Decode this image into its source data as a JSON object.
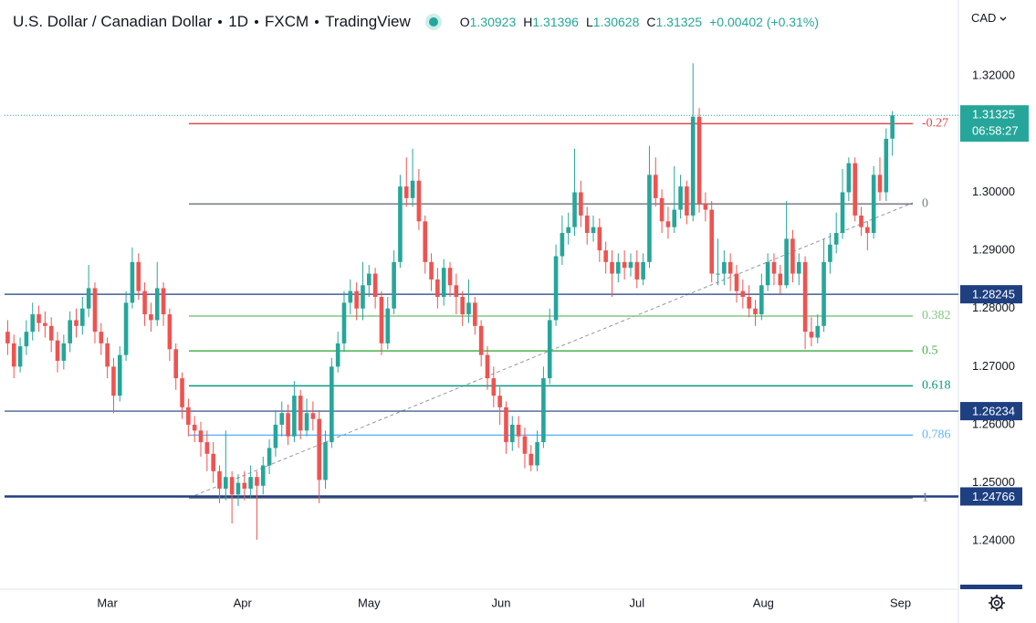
{
  "chart_data": {
    "type": "candlestick",
    "title": "U.S. Dollar / Canadian Dollar",
    "interval": "1D",
    "source": "FXCM",
    "platform": "TradingView",
    "currency": "CAD",
    "ohlc_prefixes": [
      "O",
      "H",
      "L",
      "C"
    ],
    "change": "+0.00402 (+0.31%)",
    "countdown": "06:58:27",
    "up_color": "#26a69a",
    "down_color": "#ef5350",
    "open": [
      1.276,
      1.274,
      1.27,
      1.2735,
      1.276,
      1.279,
      1.2775,
      1.277,
      1.2745,
      1.271,
      1.274,
      1.278,
      1.277,
      1.28,
      1.2835,
      1.276,
      1.274,
      1.27,
      1.265,
      1.272,
      1.281,
      1.288,
      1.283,
      1.279,
      1.278,
      1.2835,
      1.279,
      1.273,
      1.268,
      1.263,
      1.26,
      1.259,
      1.257,
      1.255,
      1.252,
      1.249,
      1.251,
      1.248,
      1.25,
      1.249,
      1.251,
      1.2495,
      1.253,
      1.256,
      1.26,
      1.262,
      1.258,
      1.265,
      1.259,
      1.262,
      1.261,
      1.2505,
      1.257,
      1.27,
      1.274,
      1.281,
      1.283,
      1.28,
      1.284,
      1.286,
      1.282,
      1.274,
      1.28,
      1.288,
      1.301,
      1.299,
      1.302,
      1.295,
      1.288,
      1.285,
      1.282,
      1.287,
      1.284,
      1.282,
      1.279,
      1.281,
      1.277,
      1.272,
      1.268,
      1.265,
      1.263,
      1.257,
      1.26,
      1.258,
      1.255,
      1.253,
      1.257,
      1.268,
      1.278,
      1.289,
      1.293,
      1.294,
      1.3,
      1.296,
      1.293,
      1.294,
      1.29,
      1.288,
      1.286,
      1.288,
      1.287,
      1.288,
      1.285,
      1.288,
      1.303,
      1.299,
      1.295,
      1.294,
      1.297,
      1.301,
      1.296,
      1.313,
      1.298,
      1.297,
      1.286,
      1.286,
      1.288,
      1.286,
      1.283,
      1.282,
      1.28,
      1.279,
      1.284,
      1.288,
      1.286,
      1.284,
      1.292,
      1.286,
      1.288,
      1.276,
      1.275,
      1.277,
      1.288,
      1.291,
      1.293,
      1.3,
      1.305,
      1.296,
      1.294,
      1.293,
      1.303,
      1.3,
      1.30923
    ],
    "high": [
      1.278,
      1.2755,
      1.275,
      1.278,
      1.281,
      1.2805,
      1.2795,
      1.2785,
      1.276,
      1.2755,
      1.2795,
      1.28,
      1.282,
      1.2875,
      1.2845,
      1.2775,
      1.275,
      1.2715,
      1.2735,
      1.283,
      1.2905,
      1.2895,
      1.2845,
      1.281,
      1.288,
      1.2845,
      1.28,
      1.274,
      1.269,
      1.2645,
      1.2615,
      1.2605,
      1.259,
      1.257,
      1.253,
      1.259,
      1.252,
      1.2515,
      1.252,
      1.253,
      1.252,
      1.2545,
      1.2575,
      1.2625,
      1.264,
      1.2635,
      1.2675,
      1.266,
      1.2645,
      1.264,
      1.2625,
      1.259,
      1.2715,
      1.276,
      1.283,
      1.285,
      1.2845,
      1.288,
      1.2875,
      1.287,
      1.283,
      1.282,
      1.29,
      1.303,
      1.306,
      1.3075,
      1.304,
      1.296,
      1.2895,
      1.287,
      1.2885,
      1.288,
      1.286,
      1.283,
      1.285,
      1.282,
      1.278,
      1.2735,
      1.27,
      1.2665,
      1.264,
      1.2615,
      1.2615,
      1.2595,
      1.2565,
      1.259,
      1.27,
      1.28,
      1.291,
      1.296,
      1.2965,
      1.3075,
      1.302,
      1.2975,
      1.296,
      1.2955,
      1.2915,
      1.29,
      1.2895,
      1.29,
      1.2895,
      1.29,
      1.2895,
      1.308,
      1.306,
      1.3005,
      1.2975,
      1.3045,
      1.303,
      1.302,
      1.3222,
      1.3145,
      1.3,
      1.2985,
      1.292,
      1.29,
      1.2895,
      1.2875,
      1.285,
      1.284,
      1.2815,
      1.286,
      1.2895,
      1.2895,
      1.2875,
      1.2985,
      1.2935,
      1.2895,
      1.289,
      1.2785,
      1.279,
      1.292,
      1.293,
      1.2965,
      1.304,
      1.306,
      1.306,
      1.2975,
      1.295,
      1.3045,
      1.306,
      1.311,
      1.31396
    ],
    "low": [
      1.272,
      1.268,
      1.269,
      1.272,
      1.2745,
      1.276,
      1.275,
      1.2725,
      1.269,
      1.2695,
      1.2725,
      1.275,
      1.2755,
      1.2785,
      1.274,
      1.272,
      1.268,
      1.262,
      1.264,
      1.271,
      1.28,
      1.2815,
      1.277,
      1.276,
      1.277,
      1.277,
      1.271,
      1.266,
      1.261,
      1.258,
      1.257,
      1.2545,
      1.252,
      1.25,
      1.2465,
      1.247,
      1.243,
      1.246,
      1.247,
      1.2475,
      1.2402,
      1.248,
      1.2515,
      1.2545,
      1.258,
      1.2565,
      1.257,
      1.2575,
      1.258,
      1.259,
      1.2465,
      1.249,
      1.256,
      1.269,
      1.2725,
      1.279,
      1.278,
      1.278,
      1.282,
      1.28,
      1.272,
      1.273,
      1.279,
      1.287,
      1.2975,
      1.2975,
      1.2935,
      1.286,
      1.283,
      1.28,
      1.2805,
      1.282,
      1.279,
      1.277,
      1.2775,
      1.2755,
      1.27,
      1.266,
      1.263,
      1.26,
      1.255,
      1.2555,
      1.256,
      1.2525,
      1.252,
      1.252,
      1.256,
      1.267,
      1.277,
      1.2875,
      1.291,
      1.2925,
      1.294,
      1.291,
      1.2915,
      1.288,
      1.286,
      1.282,
      1.2845,
      1.285,
      1.2855,
      1.2835,
      1.284,
      1.287,
      1.2975,
      1.293,
      1.292,
      1.293,
      1.2955,
      1.2945,
      1.295,
      1.2965,
      1.295,
      1.2845,
      1.284,
      1.284,
      1.283,
      1.281,
      1.28,
      1.2785,
      1.277,
      1.278,
      1.283,
      1.284,
      1.2825,
      1.2835,
      1.2845,
      1.284,
      1.273,
      1.2735,
      1.274,
      1.276,
      1.286,
      1.2895,
      1.292,
      1.2985,
      1.295,
      1.2925,
      1.29,
      1.292,
      1.2985,
      1.2985,
      1.30628
    ],
    "close": [
      1.274,
      1.27,
      1.2735,
      1.276,
      1.279,
      1.2775,
      1.277,
      1.2745,
      1.271,
      1.274,
      1.278,
      1.277,
      1.28,
      1.2835,
      1.276,
      1.274,
      1.27,
      1.265,
      1.272,
      1.281,
      1.288,
      1.283,
      1.279,
      1.278,
      1.2835,
      1.279,
      1.273,
      1.268,
      1.263,
      1.26,
      1.259,
      1.257,
      1.255,
      1.252,
      1.249,
      1.251,
      1.248,
      1.25,
      1.249,
      1.251,
      1.2495,
      1.253,
      1.256,
      1.26,
      1.262,
      1.258,
      1.265,
      1.259,
      1.262,
      1.261,
      1.2505,
      1.257,
      1.27,
      1.274,
      1.281,
      1.283,
      1.28,
      1.284,
      1.286,
      1.282,
      1.274,
      1.28,
      1.288,
      1.301,
      1.299,
      1.302,
      1.295,
      1.288,
      1.285,
      1.282,
      1.287,
      1.284,
      1.282,
      1.279,
      1.281,
      1.277,
      1.272,
      1.268,
      1.265,
      1.263,
      1.257,
      1.26,
      1.258,
      1.255,
      1.253,
      1.257,
      1.268,
      1.278,
      1.289,
      1.293,
      1.294,
      1.3,
      1.296,
      1.293,
      1.294,
      1.29,
      1.288,
      1.286,
      1.288,
      1.287,
      1.288,
      1.285,
      1.288,
      1.303,
      1.299,
      1.295,
      1.294,
      1.297,
      1.301,
      1.296,
      1.313,
      1.298,
      1.297,
      1.286,
      1.286,
      1.288,
      1.286,
      1.283,
      1.282,
      1.28,
      1.279,
      1.284,
      1.288,
      1.286,
      1.284,
      1.292,
      1.286,
      1.288,
      1.276,
      1.275,
      1.277,
      1.288,
      1.291,
      1.293,
      1.3,
      1.305,
      1.296,
      1.294,
      1.293,
      1.303,
      1.3,
      1.3092,
      1.31325
    ],
    "xlim": [
      -0.5,
      152.6
    ],
    "xticks": [
      {
        "value": 16,
        "label": "Mar"
      },
      {
        "value": 37.7,
        "label": "Apr"
      },
      {
        "value": 58,
        "label": "May"
      },
      {
        "value": 79.2,
        "label": "Jun"
      },
      {
        "value": 101,
        "label": "Jul"
      },
      {
        "value": 121.3,
        "label": "Aug"
      },
      {
        "value": 143.3,
        "label": "Sep"
      }
    ],
    "ylim": [
      1.2317,
      1.3323
    ],
    "yticks": [
      {
        "value": 1.24,
        "label": "1.24000"
      },
      {
        "value": 1.25,
        "label": "1.25000"
      },
      {
        "value": 1.26,
        "label": "1.26000"
      },
      {
        "value": 1.27,
        "label": "1.27000"
      },
      {
        "value": 1.28,
        "label": "1.28000"
      },
      {
        "value": 1.29,
        "label": "1.29000"
      },
      {
        "value": 1.3,
        "label": "1.30000"
      },
      {
        "value": 1.31,
        "label": "1.31000"
      },
      {
        "value": 1.32,
        "label": "1.32000"
      }
    ],
    "grid": false,
    "horizontal_lines": [
      {
        "value": 1.28245,
        "color": "#1e3f80"
      },
      {
        "value": 1.26234,
        "color": "#1e3f80"
      },
      {
        "value": 1.24766,
        "color": "#1e3f80"
      }
    ],
    "fib_levels": [
      {
        "level": -0.27,
        "price": 1.3118,
        "color": "#e0484e"
      },
      {
        "level": 0,
        "price": 1.298,
        "color": "#787b86"
      },
      {
        "level": 0.382,
        "price": 1.2787,
        "color": "#81c784"
      },
      {
        "level": 0.5,
        "price": 1.2727,
        "color": "#4caf50"
      },
      {
        "level": 0.618,
        "price": 1.2667,
        "color": "#089981"
      },
      {
        "level": 0.786,
        "price": 1.2582,
        "color": "#64b5f6"
      },
      {
        "level": 1,
        "price": 1.2474,
        "color": "#787b86"
      }
    ]
  }
}
